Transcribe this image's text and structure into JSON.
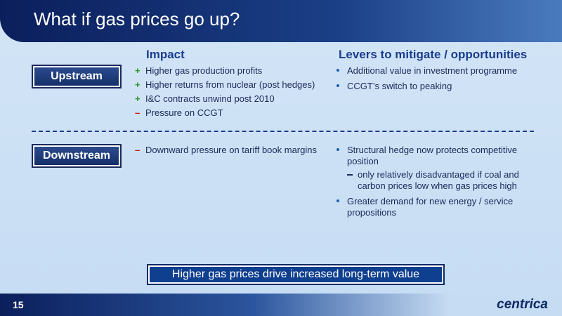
{
  "header": {
    "title": "What if gas prices go up?"
  },
  "columns": {
    "impact": "Impact",
    "levers": "Levers to mitigate / opportunities"
  },
  "sections": [
    {
      "label": "Upstream",
      "impact": [
        {
          "sign": "+",
          "text": "Higher gas production profits"
        },
        {
          "sign": "+",
          "text": "Higher returns from nuclear (post hedges)"
        },
        {
          "sign": "+",
          "text": "I&C contracts unwind post 2010"
        },
        {
          "sign": "–",
          "text": "Pressure on CCGT"
        }
      ],
      "levers": [
        {
          "text": "Additional value in investment programme",
          "sub": []
        },
        {
          "text": "CCGT’s switch to peaking",
          "sub": []
        }
      ]
    },
    {
      "label": "Downstream",
      "impact": [
        {
          "sign": "–",
          "text": "Downward pressure on tariff book margins"
        }
      ],
      "levers": [
        {
          "text": "Structural hedge now protects competitive position",
          "sub": [
            "only relatively disadvantaged if coal and carbon prices low when gas prices high"
          ]
        },
        {
          "text": "Greater demand for new energy / service propositions",
          "sub": []
        }
      ]
    }
  ],
  "banner": "Higher gas prices drive increased long-term value",
  "footer": {
    "page": "15",
    "logo": "centrica"
  }
}
